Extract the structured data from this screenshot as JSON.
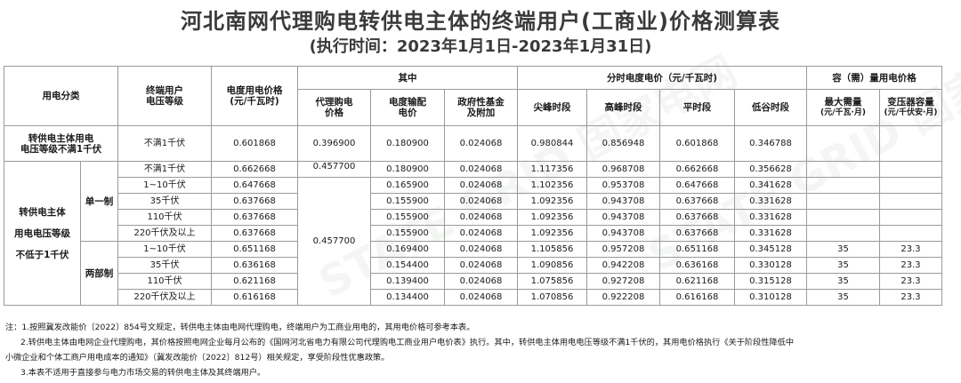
{
  "title": "河北南网代理购电转供电主体的终端用户(工商业)价格测算表",
  "subtitle": "(执行时间：2023年1月1日-2023年1月31日)",
  "header": {
    "category": "用电分类",
    "voltage": "终端用户\n电压等级",
    "price": "电度用电价格\n(元/千瓦时)",
    "group_of": "其中",
    "tou_group": "分时电度电价（元/千瓦时)",
    "cap_group": "容（需）量用电价格",
    "agency": "代理购电\n价格",
    "transmission": "电度输配\n电价",
    "fund": "政府性基金\n及附加",
    "peak_sharp": "尖峰时段",
    "peak": "高峰时段",
    "flat": "平时段",
    "valley": "低谷时段",
    "max_demand": "最大需量",
    "max_demand_unit": "(元/千瓦·月)",
    "transformer": "变压器容量",
    "transformer_unit": "(元/千伏安·月)"
  },
  "row1": {
    "category": "转供电主体用电\n电压等级不满1千伏",
    "voltage": "不满1千伏",
    "price": "0.601868",
    "agency": "0.396900",
    "transmission": "0.180900",
    "fund": "0.024068",
    "sharp": "0.980844",
    "peak": "0.856948",
    "flat": "0.601868",
    "valley": "0.346788"
  },
  "group2": {
    "category": "转供电主体\n\n用电电压等级\n\n不低于1千伏",
    "single": "单一制",
    "dual": "两部制",
    "agency_top": "0.457700",
    "agency_mid": "0.457700"
  },
  "rows": [
    {
      "voltage": "不满1千伏",
      "price": "0.662668",
      "transmission": "0.180900",
      "fund": "0.024068",
      "sharp": "1.117356",
      "peak": "0.968708",
      "flat": "0.662668",
      "valley": "0.356628",
      "demand": "",
      "transformer": ""
    },
    {
      "voltage": "1~10千伏",
      "price": "0.647668",
      "transmission": "0.165900",
      "fund": "0.024068",
      "sharp": "1.102356",
      "peak": "0.953708",
      "flat": "0.647668",
      "valley": "0.341628",
      "demand": "",
      "transformer": ""
    },
    {
      "voltage": "35千伏",
      "price": "0.637668",
      "transmission": "0.155900",
      "fund": "0.024068",
      "sharp": "1.092356",
      "peak": "0.943708",
      "flat": "0.637668",
      "valley": "0.331628",
      "demand": "",
      "transformer": ""
    },
    {
      "voltage": "110千伏",
      "price": "0.637668",
      "transmission": "0.155900",
      "fund": "0.024068",
      "sharp": "1.092356",
      "peak": "0.943708",
      "flat": "0.637668",
      "valley": "0.331628",
      "demand": "",
      "transformer": ""
    },
    {
      "voltage": "220千伏及以上",
      "price": "0.637668",
      "transmission": "0.155900",
      "fund": "0.024068",
      "sharp": "1.092356",
      "peak": "0.943708",
      "flat": "0.637668",
      "valley": "0.331628",
      "demand": "",
      "transformer": ""
    },
    {
      "voltage": "1~10千伏",
      "price": "0.651168",
      "transmission": "0.169400",
      "fund": "0.024068",
      "sharp": "1.105856",
      "peak": "0.957208",
      "flat": "0.651168",
      "valley": "0.345128",
      "demand": "35",
      "transformer": "23.3"
    },
    {
      "voltage": "35千伏",
      "price": "0.636168",
      "transmission": "0.154400",
      "fund": "0.024068",
      "sharp": "1.090856",
      "peak": "0.942208",
      "flat": "0.636168",
      "valley": "0.330128",
      "demand": "35",
      "transformer": "23.3"
    },
    {
      "voltage": "110千伏",
      "price": "0.621168",
      "transmission": "0.139400",
      "fund": "0.024068",
      "sharp": "1.075856",
      "peak": "0.927208",
      "flat": "0.621168",
      "valley": "0.315128",
      "demand": "35",
      "transformer": "23.3"
    },
    {
      "voltage": "220千伏及以上",
      "price": "0.616168",
      "transmission": "0.134400",
      "fund": "0.024068",
      "sharp": "1.070856",
      "peak": "0.922208",
      "flat": "0.616168",
      "valley": "0.310128",
      "demand": "35",
      "transformer": "23.3"
    }
  ],
  "notes": [
    "注：1.按照冀发改能价〔2022〕854号文规定，转供电主体由电网代理购电，终端用户为工商业用电的，其用电价格可参考本表。",
    "2.转供电主体由电网企业代理购电，其价格按照电网企业每月公布的《国网河北省电力有限公司代理购电工商业用户电价表》执行。其中，转供电主体用电电压等级不满1千伏的，其用电价格执行《关于阶段性降低中",
    "小微企业和个体工商户用电成本的通知》（冀发改能价〔2022〕812号）相关规定，享受阶段性优惠政策。",
    "3.本表不适用于直接参与电力市场交易的转供电主体及其终端用户。"
  ],
  "watermark": "STATE GRID 国家电网",
  "colors": {
    "title": "#3a3a3a",
    "border": "#9a9a9a",
    "watermark": "#2f6b2f"
  }
}
